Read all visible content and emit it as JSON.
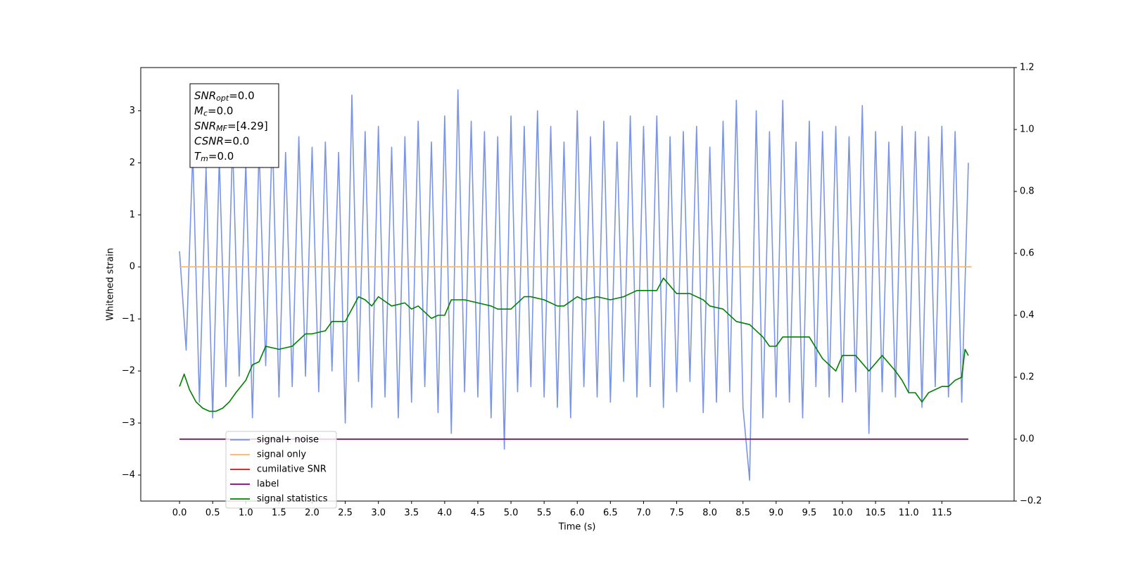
{
  "chart_data": {
    "type": "line",
    "xlabel": "Time (s)",
    "ylabel": "Whitened strain",
    "xlim": [
      -0.585,
      12.59
    ],
    "ylim": [
      -4.5,
      3.83
    ],
    "y2lim": [
      -0.2,
      1.2
    ],
    "xticks": [
      {
        "value": 0,
        "label": "0.0"
      },
      {
        "value": 0.5,
        "label": "0.5"
      },
      {
        "value": 1,
        "label": "1.0"
      },
      {
        "value": 1.5,
        "label": "1.5"
      },
      {
        "value": 2,
        "label": "2.0"
      },
      {
        "value": 2.5,
        "label": "2.5"
      },
      {
        "value": 3,
        "label": "3.0"
      },
      {
        "value": 3.5,
        "label": "3.5"
      },
      {
        "value": 4,
        "label": "4.0"
      },
      {
        "value": 4.5,
        "label": "4.5"
      },
      {
        "value": 5,
        "label": "5.0"
      },
      {
        "value": 5.5,
        "label": "5.5"
      },
      {
        "value": 6,
        "label": "6.0"
      },
      {
        "value": 6.5,
        "label": "6.5"
      },
      {
        "value": 7,
        "label": "7.0"
      },
      {
        "value": 7.5,
        "label": "7.5"
      },
      {
        "value": 8,
        "label": "8.0"
      },
      {
        "value": 8.5,
        "label": "8.5"
      },
      {
        "value": 9,
        "label": "9.0"
      },
      {
        "value": 9.5,
        "label": "9.5"
      },
      {
        "value": 10,
        "label": "10.0"
      },
      {
        "value": 10.5,
        "label": "10.5"
      },
      {
        "value": 11,
        "label": "11.0"
      },
      {
        "value": 11.5,
        "label": "11.5"
      }
    ],
    "yticks": [
      {
        "value": -4,
        "label": "−4"
      },
      {
        "value": -3,
        "label": "−3"
      },
      {
        "value": -2,
        "label": "−2"
      },
      {
        "value": -1,
        "label": "−1"
      },
      0,
      1,
      2,
      3
    ],
    "y2ticks": [
      {
        "value": -0.2,
        "label": "−0.2"
      },
      {
        "value": 0,
        "label": "0.0"
      },
      {
        "value": 0.2,
        "label": "0.2"
      },
      {
        "value": 0.4,
        "label": "0.4"
      },
      {
        "value": 0.6,
        "label": "0.6"
      },
      {
        "value": 0.8,
        "label": "0.8"
      },
      {
        "value": 1,
        "label": "1.0"
      },
      {
        "value": 1.2,
        "label": "1.2"
      }
    ],
    "legend": "lower left",
    "annotation": [
      {
        "main": "SNR",
        "sub": "opt",
        "rest": "=0.0"
      },
      {
        "main": "M",
        "sub": "c",
        "rest": "=0.0"
      },
      {
        "main": "SNR",
        "sub": "MF",
        "rest": "=[4.29]"
      },
      {
        "main": "CSNR",
        "rest": "=0.0"
      },
      {
        "main": "T",
        "sub": "m",
        "rest": "=0.0"
      }
    ],
    "series": [
      {
        "name": "signal+ noise",
        "color": "#7994e8",
        "axis": "y",
        "x": [
          0,
          0.1,
          0.2,
          0.3,
          0.4,
          0.5,
          0.6,
          0.7,
          0.8,
          0.9,
          1,
          1.1,
          1.2,
          1.3,
          1.4,
          1.5,
          1.6,
          1.7,
          1.8,
          1.9,
          2,
          2.1,
          2.2,
          2.3,
          2.4,
          2.5,
          2.6,
          2.7,
          2.8,
          2.9,
          3,
          3.1,
          3.2,
          3.3,
          3.4,
          3.5,
          3.6,
          3.7,
          3.8,
          3.9,
          4,
          4.1,
          4.2,
          4.3,
          4.4,
          4.5,
          4.6,
          4.7,
          4.8,
          4.9,
          5,
          5.1,
          5.2,
          5.3,
          5.4,
          5.5,
          5.6,
          5.7,
          5.8,
          5.9,
          6,
          6.1,
          6.2,
          6.3,
          6.4,
          6.5,
          6.6,
          6.7,
          6.8,
          6.9,
          7,
          7.1,
          7.2,
          7.3,
          7.4,
          7.5,
          7.6,
          7.7,
          7.8,
          7.9,
          8,
          8.1,
          8.2,
          8.3,
          8.4,
          8.5,
          8.6,
          8.7,
          8.8,
          8.9,
          9,
          9.1,
          9.2,
          9.3,
          9.4,
          9.5,
          9.6,
          9.7,
          9.8,
          9.9,
          10,
          10.1,
          10.2,
          10.3,
          10.4,
          10.5,
          10.6,
          10.7,
          10.8,
          10.9,
          11,
          11.1,
          11.2,
          11.3,
          11.4,
          11.5,
          11.6,
          11.7,
          11.8,
          11.9
        ],
        "values": [
          0.3,
          -1.6,
          2.2,
          -2.6,
          1.9,
          -2.9,
          2.1,
          -2.3,
          2.4,
          -2.1,
          2.0,
          -2.9,
          2.3,
          -1.9,
          2.6,
          -2.5,
          2.2,
          -2.3,
          2.5,
          -2.1,
          2.3,
          -2.4,
          2.4,
          -2.0,
          2.2,
          -3.0,
          3.3,
          -2.2,
          2.6,
          -2.7,
          2.7,
          -2.5,
          2.3,
          -2.9,
          2.5,
          -2.6,
          2.8,
          -2.3,
          2.4,
          -2.8,
          2.9,
          -3.2,
          3.4,
          -2.4,
          2.8,
          -2.5,
          2.6,
          -2.9,
          2.5,
          -3.5,
          2.9,
          -2.4,
          2.7,
          -2.3,
          3.0,
          -2.5,
          2.7,
          -2.7,
          2.4,
          -2.9,
          3.0,
          -2.3,
          2.5,
          -2.5,
          2.8,
          -2.6,
          2.4,
          -2.2,
          2.9,
          -2.5,
          2.7,
          -2.3,
          2.9,
          -2.7,
          2.5,
          -2.4,
          2.6,
          -2.2,
          2.7,
          -2.8,
          2.3,
          -2.6,
          2.8,
          -2.4,
          3.2,
          -2.7,
          -4.1,
          3.0,
          -2.9,
          2.6,
          -2.5,
          3.2,
          -2.6,
          2.4,
          -2.9,
          2.8,
          -2.3,
          2.6,
          -2.5,
          2.7,
          -2.6,
          2.5,
          -2.4,
          3.1,
          -3.2,
          2.6,
          -2.4,
          2.4,
          -2.5,
          2.7,
          -2.4,
          2.6,
          -2.7,
          2.5,
          -2.3,
          2.7,
          -2.5,
          2.6,
          -2.6,
          2.0
        ]
      },
      {
        "name": "signal only",
        "color": "#ffb74d",
        "axis": "y",
        "x": [
          0,
          11.95
        ],
        "values": [
          0,
          0
        ]
      },
      {
        "name": "cumilative SNR",
        "color": "#ff0000",
        "axis": "y2",
        "x": [
          0,
          11.9
        ],
        "values": [
          0,
          0
        ]
      },
      {
        "name": "label",
        "color": "#800080",
        "axis": "y2",
        "x": [
          0,
          11.9
        ],
        "values": [
          0,
          0
        ]
      },
      {
        "name": "signal statistics",
        "color": "#008000",
        "axis": "y2",
        "x": [
          0,
          0.07,
          0.15,
          0.25,
          0.35,
          0.45,
          0.55,
          0.65,
          0.75,
          0.85,
          1.0,
          1.1,
          1.2,
          1.3,
          1.5,
          1.7,
          1.9,
          2.0,
          2.2,
          2.3,
          2.5,
          2.6,
          2.7,
          2.8,
          2.9,
          3.0,
          3.2,
          3.4,
          3.5,
          3.6,
          3.8,
          3.9,
          4.0,
          4.1,
          4.3,
          4.5,
          4.7,
          4.8,
          5.0,
          5.2,
          5.3,
          5.5,
          5.7,
          5.8,
          6.0,
          6.1,
          6.3,
          6.5,
          6.7,
          6.9,
          7.0,
          7.2,
          7.3,
          7.5,
          7.7,
          7.9,
          8.0,
          8.2,
          8.4,
          8.6,
          8.8,
          8.9,
          9.0,
          9.1,
          9.3,
          9.5,
          9.7,
          9.8,
          9.9,
          10.0,
          10.2,
          10.4,
          10.6,
          10.8,
          10.9,
          11.0,
          11.1,
          11.2,
          11.3,
          11.5,
          11.6,
          11.7,
          11.8,
          11.85,
          11.9
        ],
        "values": [
          0.17,
          0.21,
          0.16,
          0.12,
          0.1,
          0.09,
          0.09,
          0.1,
          0.12,
          0.15,
          0.19,
          0.24,
          0.25,
          0.3,
          0.29,
          0.3,
          0.34,
          0.34,
          0.35,
          0.38,
          0.38,
          0.42,
          0.46,
          0.45,
          0.43,
          0.46,
          0.43,
          0.44,
          0.42,
          0.43,
          0.39,
          0.4,
          0.4,
          0.45,
          0.45,
          0.44,
          0.43,
          0.42,
          0.42,
          0.46,
          0.46,
          0.45,
          0.43,
          0.43,
          0.46,
          0.45,
          0.46,
          0.45,
          0.46,
          0.48,
          0.48,
          0.48,
          0.52,
          0.47,
          0.47,
          0.45,
          0.43,
          0.42,
          0.38,
          0.37,
          0.33,
          0.3,
          0.3,
          0.33,
          0.33,
          0.33,
          0.26,
          0.24,
          0.22,
          0.27,
          0.27,
          0.22,
          0.27,
          0.22,
          0.19,
          0.15,
          0.15,
          0.12,
          0.15,
          0.17,
          0.17,
          0.19,
          0.2,
          0.29,
          0.27
        ]
      }
    ]
  }
}
